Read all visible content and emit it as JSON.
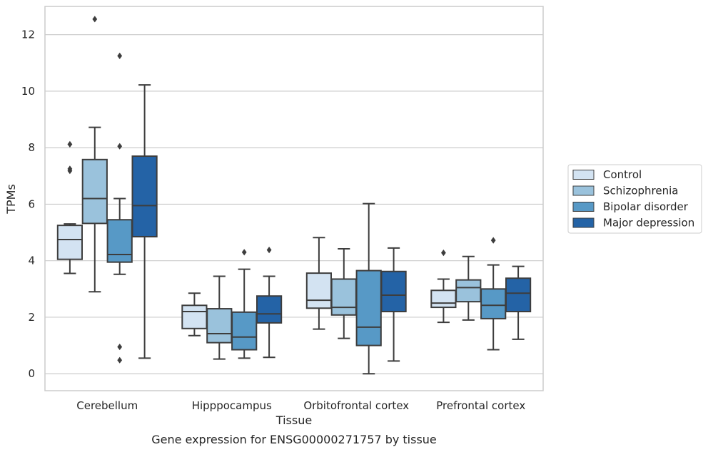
{
  "caption": "Gene expression for ENSG00000271757 by tissue",
  "chart_data": {
    "type": "box",
    "xlabel": "Tissue",
    "ylabel": "TPMs",
    "ylim": [
      -0.6,
      13.0
    ],
    "yticks": [
      0,
      2,
      4,
      6,
      8,
      10,
      12
    ],
    "grid": true,
    "legend_position": "right",
    "categories": [
      "Cerebellum",
      "Hipppocampus",
      "Orbitofrontal cortex",
      "Prefrontal cortex"
    ],
    "series": [
      {
        "name": "Control",
        "color": "#d3e3f2",
        "boxes": [
          {
            "whislo": 3.55,
            "q1": 4.05,
            "med": 4.75,
            "q3": 5.25,
            "whishi": 5.3,
            "fliers": [
              8.12,
              7.25,
              7.18
            ]
          },
          {
            "whislo": 1.35,
            "q1": 1.6,
            "med": 2.2,
            "q3": 2.42,
            "whishi": 2.85,
            "fliers": []
          },
          {
            "whislo": 1.58,
            "q1": 2.32,
            "med": 2.6,
            "q3": 3.56,
            "whishi": 4.82,
            "fliers": []
          },
          {
            "whislo": 1.82,
            "q1": 2.35,
            "med": 2.5,
            "q3": 2.95,
            "whishi": 3.35,
            "fliers": [
              4.28
            ]
          }
        ]
      },
      {
        "name": "Schizophrenia",
        "color": "#9ac2dc",
        "boxes": [
          {
            "whislo": 2.9,
            "q1": 5.32,
            "med": 6.2,
            "q3": 7.58,
            "whishi": 8.72,
            "fliers": [
              12.55
            ]
          },
          {
            "whislo": 0.52,
            "q1": 1.1,
            "med": 1.42,
            "q3": 2.3,
            "whishi": 3.45,
            "fliers": []
          },
          {
            "whislo": 1.25,
            "q1": 2.08,
            "med": 2.35,
            "q3": 3.35,
            "whishi": 4.42,
            "fliers": []
          },
          {
            "whislo": 1.9,
            "q1": 2.55,
            "med": 3.05,
            "q3": 3.32,
            "whishi": 4.15,
            "fliers": []
          }
        ]
      },
      {
        "name": "Bipolar disorder",
        "color": "#5799c6",
        "boxes": [
          {
            "whislo": 3.52,
            "q1": 3.95,
            "med": 4.22,
            "q3": 5.45,
            "whishi": 6.2,
            "fliers": [
              11.25,
              8.05,
              0.95,
              0.48
            ]
          },
          {
            "whislo": 0.55,
            "q1": 0.85,
            "med": 1.3,
            "q3": 2.18,
            "whishi": 3.7,
            "fliers": [
              4.3
            ]
          },
          {
            "whislo": 0.0,
            "q1": 1.0,
            "med": 1.65,
            "q3": 3.65,
            "whishi": 6.02,
            "fliers": []
          },
          {
            "whislo": 0.85,
            "q1": 1.95,
            "med": 2.42,
            "q3": 3.0,
            "whishi": 3.85,
            "fliers": [
              4.72
            ]
          }
        ]
      },
      {
        "name": "Major depression",
        "color": "#2463a6",
        "boxes": [
          {
            "whislo": 0.55,
            "q1": 4.85,
            "med": 5.95,
            "q3": 7.7,
            "whishi": 10.22,
            "fliers": []
          },
          {
            "whislo": 0.58,
            "q1": 1.8,
            "med": 2.12,
            "q3": 2.75,
            "whishi": 3.45,
            "fliers": [
              4.38
            ]
          },
          {
            "whislo": 0.45,
            "q1": 2.2,
            "med": 2.78,
            "q3": 3.62,
            "whishi": 4.45,
            "fliers": []
          },
          {
            "whislo": 1.22,
            "q1": 2.2,
            "med": 2.85,
            "q3": 3.38,
            "whishi": 3.8,
            "fliers": []
          }
        ]
      }
    ]
  }
}
